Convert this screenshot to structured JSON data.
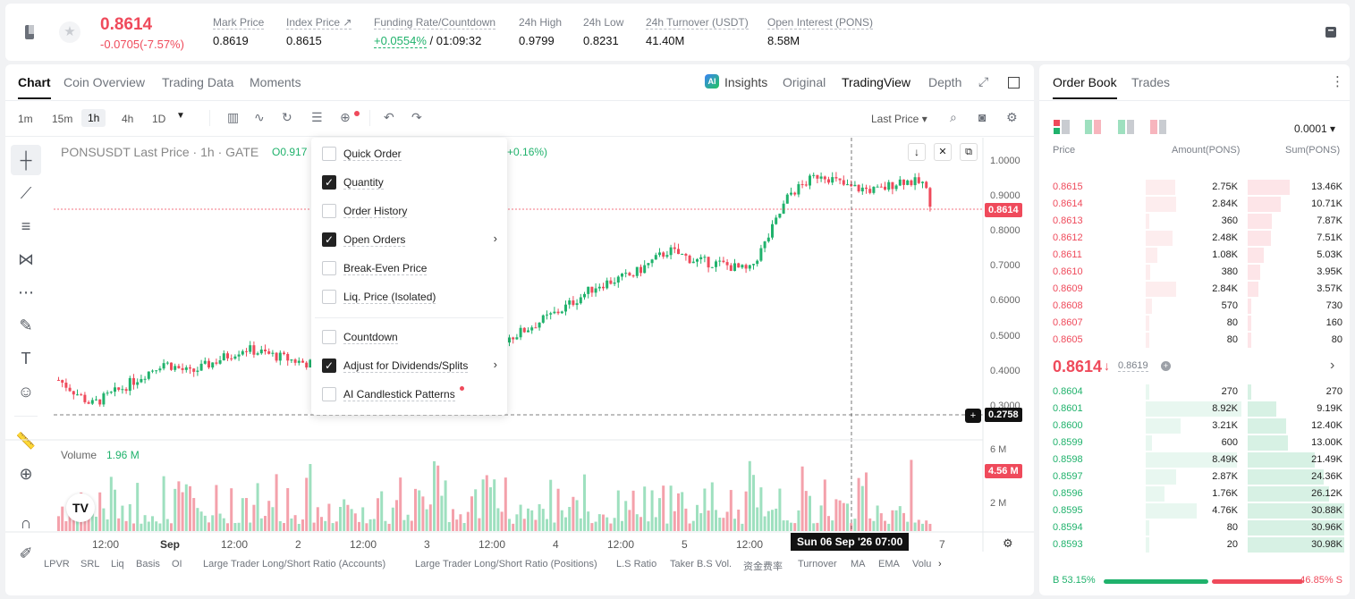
{
  "header": {
    "last_price": "0.8614",
    "change": "-0.0705(-7.57%)",
    "stats": [
      {
        "label": "Mark Price",
        "value": "0.8619"
      },
      {
        "label": "Index Price ↗",
        "value": "0.8615"
      },
      {
        "label": "Funding Rate/Countdown",
        "value_a": "+0.0554%",
        "value_b": "/ 01:09:32"
      },
      {
        "label": "24h High",
        "value": "0.9799"
      },
      {
        "label": "24h Low",
        "value": "0.8231"
      },
      {
        "label": "24h Turnover (USDT)",
        "value": "41.40M"
      },
      {
        "label": "Open Interest (PONS)",
        "value": "8.58M"
      }
    ]
  },
  "chart_tabs": [
    "Chart",
    "Coin Overview",
    "Trading Data",
    "Moments"
  ],
  "chart_views": {
    "insights": "Insights",
    "original": "Original",
    "tradingview": "TradingView",
    "depth": "Depth"
  },
  "timeframes": [
    "1m",
    "15m",
    "1h",
    "4h",
    "1D"
  ],
  "price_type": "Last Price ▾",
  "chart": {
    "symbol_title": "PONSUSDT Last Price · 1h · GATE",
    "ohlc_prefix": "O0.917",
    "change_pct": "+0.16%)",
    "volume_label": "Volume",
    "volume_value": "1.96 M",
    "y_labels": [
      "1.0000",
      "0.9000",
      "0.8000",
      "0.7000",
      "0.6000",
      "0.5000",
      "0.4000",
      "0.3000"
    ],
    "current_price_tag": "0.8614",
    "cursor_price_tag": "0.2758",
    "vol_y_labels": [
      "6 M",
      "2 M"
    ],
    "vol_tag": "4.56 M",
    "x_labels": [
      "12:00",
      "Sep",
      "12:00",
      "2",
      "12:00",
      "3",
      "12:00",
      "4",
      "12:00",
      "5",
      "12:00",
      "7"
    ],
    "cursor_time": "Sun 06 Sep '26   07:00",
    "colors": {
      "up": "#20b26c",
      "down": "#ef4a5b"
    }
  },
  "indicators": [
    "LPVR",
    "SRL",
    "Liq",
    "Basis",
    "OI",
    "Large Trader Long/Short Ratio (Accounts)",
    "Large Trader Long/Short Ratio (Positions)",
    "L.S Ratio",
    "Taker B.S Vol.",
    "资金费率",
    "Turnover",
    "MA",
    "EMA",
    "Volu"
  ],
  "dropdown": [
    {
      "label": "Quick Order",
      "checked": false,
      "arrow": false
    },
    {
      "label": "Quantity",
      "checked": true,
      "arrow": false
    },
    {
      "label": "Order History",
      "checked": false,
      "arrow": false
    },
    {
      "label": "Open Orders",
      "checked": true,
      "arrow": true
    },
    {
      "label": "Break-Even Price",
      "checked": false,
      "arrow": false
    },
    {
      "label": "Liq. Price (Isolated)",
      "checked": false,
      "arrow": false
    },
    {
      "label": "Countdown",
      "checked": false,
      "arrow": false
    },
    {
      "label": "Adjust for Dividends/Splits",
      "checked": true,
      "arrow": true
    },
    {
      "label": "AI Candlestick Patterns",
      "checked": false,
      "arrow": false
    }
  ],
  "orderbook": {
    "tabs": [
      "Order Book",
      "Trades"
    ],
    "precision": "0.0001",
    "headers": [
      "Price",
      "Amount(PONS)",
      "Sum(PONS)"
    ],
    "asks": [
      {
        "price": "0.8615",
        "amount": "2.75K",
        "sum": "13.46K"
      },
      {
        "price": "0.8614",
        "amount": "2.84K",
        "sum": "10.71K"
      },
      {
        "price": "0.8613",
        "amount": "360",
        "sum": "7.87K"
      },
      {
        "price": "0.8612",
        "amount": "2.48K",
        "sum": "7.51K"
      },
      {
        "price": "0.8611",
        "amount": "1.08K",
        "sum": "5.03K"
      },
      {
        "price": "0.8610",
        "amount": "380",
        "sum": "3.95K"
      },
      {
        "price": "0.8609",
        "amount": "2.84K",
        "sum": "3.57K"
      },
      {
        "price": "0.8608",
        "amount": "570",
        "sum": "730"
      },
      {
        "price": "0.8607",
        "amount": "80",
        "sum": "160"
      },
      {
        "price": "0.8605",
        "amount": "80",
        "sum": "80"
      }
    ],
    "mid_price": "0.8614",
    "mid_mark": "0.8619",
    "bids": [
      {
        "price": "0.8604",
        "amount": "270",
        "sum": "270"
      },
      {
        "price": "0.8601",
        "amount": "8.92K",
        "sum": "9.19K"
      },
      {
        "price": "0.8600",
        "amount": "3.21K",
        "sum": "12.40K"
      },
      {
        "price": "0.8599",
        "amount": "600",
        "sum": "13.00K"
      },
      {
        "price": "0.8598",
        "amount": "8.49K",
        "sum": "21.49K"
      },
      {
        "price": "0.8597",
        "amount": "2.87K",
        "sum": "24.36K"
      },
      {
        "price": "0.8596",
        "amount": "1.76K",
        "sum": "26.12K"
      },
      {
        "price": "0.8595",
        "amount": "4.76K",
        "sum": "30.88K"
      },
      {
        "price": "0.8594",
        "amount": "80",
        "sum": "30.96K"
      },
      {
        "price": "0.8593",
        "amount": "20",
        "sum": "30.98K"
      }
    ],
    "buy_ratio": "B 53.15%",
    "sell_ratio": "46.85% S",
    "buy_fraction": 0.5315
  }
}
